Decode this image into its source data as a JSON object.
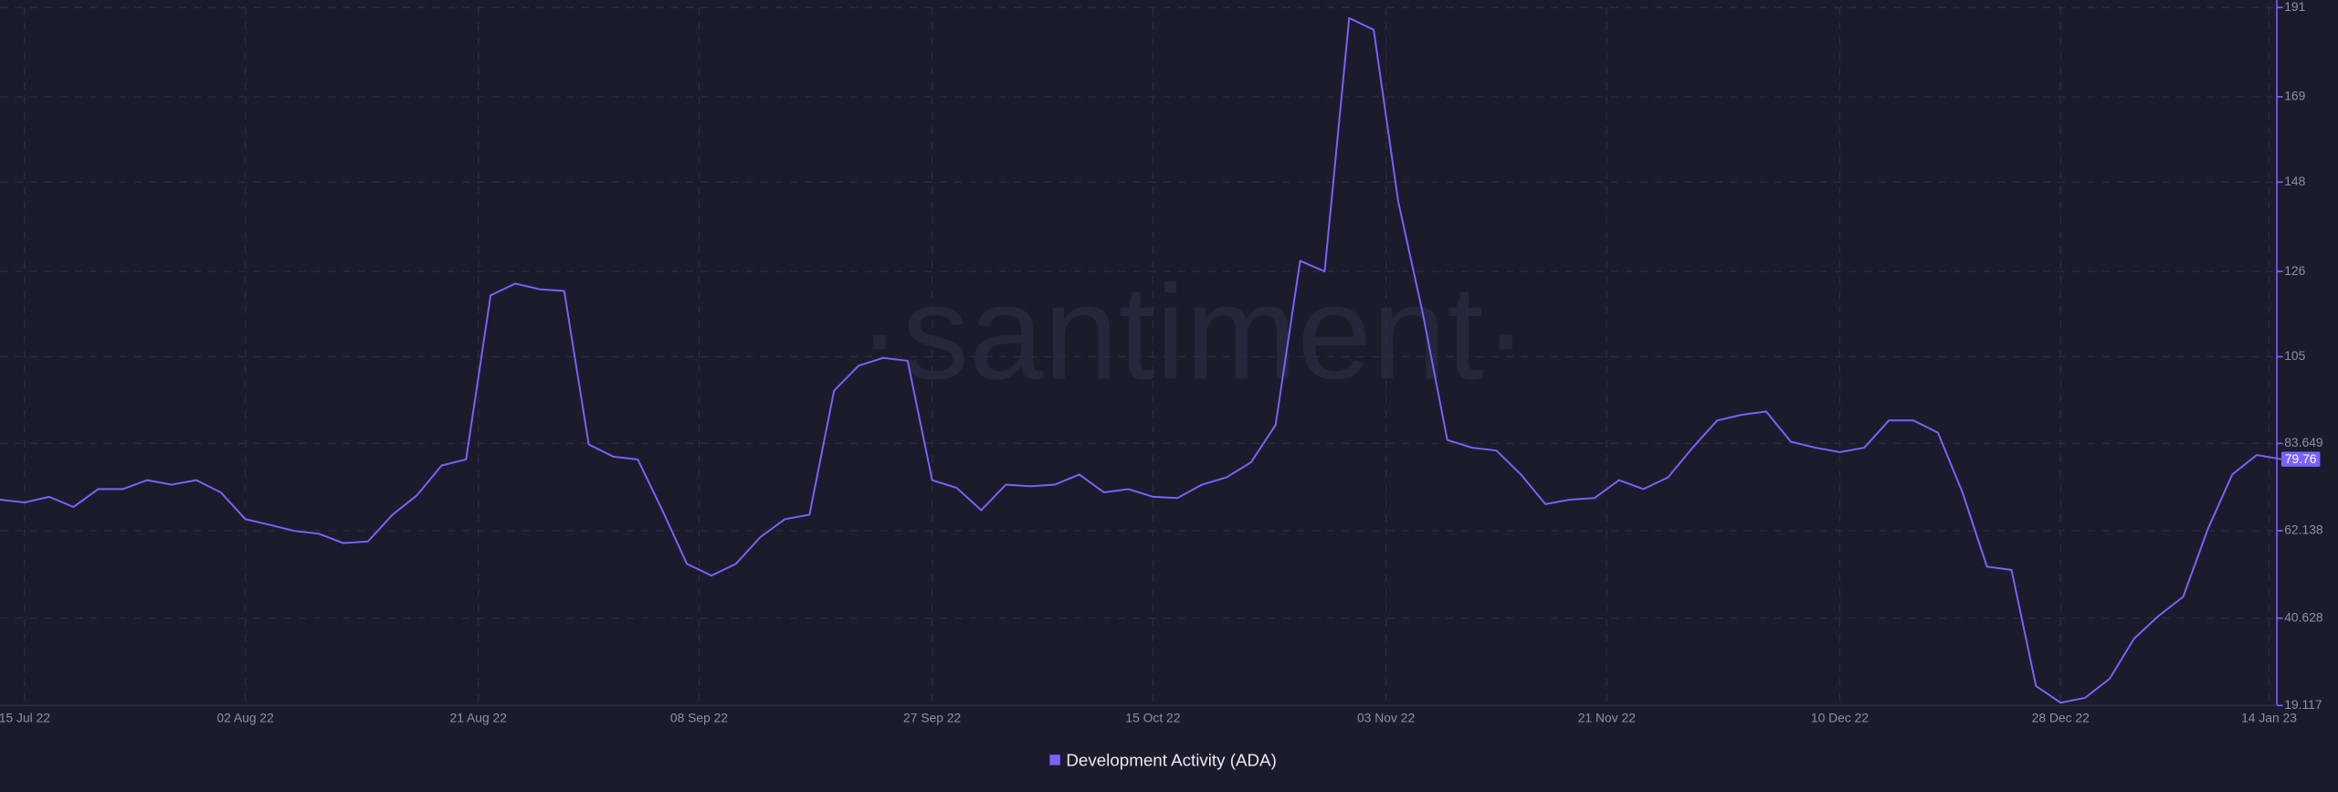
{
  "chart_data": {
    "type": "line",
    "watermark": "·santiment·",
    "x": [
      "2022-07-13",
      "2022-07-15",
      "2022-07-17",
      "2022-07-19",
      "2022-07-21",
      "2022-07-23",
      "2022-07-25",
      "2022-07-27",
      "2022-07-29",
      "2022-07-31",
      "2022-08-02",
      "2022-08-04",
      "2022-08-06",
      "2022-08-08",
      "2022-08-10",
      "2022-08-12",
      "2022-08-14",
      "2022-08-16",
      "2022-08-18",
      "2022-08-20",
      "2022-08-22",
      "2022-08-24",
      "2022-08-26",
      "2022-08-28",
      "2022-08-30",
      "2022-09-01",
      "2022-09-03",
      "2022-09-05",
      "2022-09-07",
      "2022-09-09",
      "2022-09-11",
      "2022-09-13",
      "2022-09-15",
      "2022-09-17",
      "2022-09-19",
      "2022-09-21",
      "2022-09-23",
      "2022-09-25",
      "2022-09-27",
      "2022-09-29",
      "2022-10-01",
      "2022-10-03",
      "2022-10-05",
      "2022-10-07",
      "2022-10-09",
      "2022-10-11",
      "2022-10-13",
      "2022-10-15",
      "2022-10-17",
      "2022-10-19",
      "2022-10-21",
      "2022-10-23",
      "2022-10-25",
      "2022-10-27",
      "2022-10-29",
      "2022-10-31",
      "2022-11-02",
      "2022-11-04",
      "2022-11-06",
      "2022-11-08",
      "2022-11-10",
      "2022-11-12",
      "2022-11-14",
      "2022-11-16",
      "2022-11-18",
      "2022-11-20",
      "2022-11-22",
      "2022-11-24",
      "2022-11-26",
      "2022-11-28",
      "2022-11-30",
      "2022-12-02",
      "2022-12-04",
      "2022-12-06",
      "2022-12-08",
      "2022-12-10",
      "2022-12-12",
      "2022-12-14",
      "2022-12-16",
      "2022-12-18",
      "2022-12-20",
      "2022-12-22",
      "2022-12-24",
      "2022-12-26",
      "2022-12-28",
      "2022-12-30",
      "2023-01-01",
      "2023-01-03",
      "2023-01-05",
      "2023-01-07",
      "2023-01-09",
      "2023-01-11",
      "2023-01-13",
      "2023-01-15"
    ],
    "series": [
      {
        "name": "Development Activity (ADA)",
        "color": "#7b61ff",
        "values": [
          69.8,
          69.1,
          70.5,
          68,
          72.4,
          72.4,
          74.6,
          73.5,
          74.6,
          71.6,
          65,
          63.6,
          62.1,
          61.4,
          59.1,
          59.5,
          66.1,
          70.9,
          78.2,
          79.7,
          120.1,
          123,
          121.6,
          121.2,
          83.4,
          80.4,
          79.7,
          67.2,
          54,
          51.1,
          54,
          60.6,
          65,
          66.1,
          96.6,
          102.8,
          104.7,
          104,
          74.6,
          72.7,
          67.2,
          73.5,
          73.1,
          73.5,
          76,
          71.6,
          72.4,
          70.5,
          70.2,
          73.5,
          75.3,
          79,
          88.2,
          128.6,
          126,
          188.4,
          185.5,
          143.2,
          115.7,
          84.5,
          82.6,
          81.9,
          76,
          68.7,
          69.8,
          70.2,
          74.6,
          72.4,
          75.3,
          82.6,
          89.3,
          90.7,
          91.5,
          84.1,
          82.6,
          81.5,
          82.6,
          89.3,
          89.3,
          86.3,
          71.6,
          53.3,
          52.5,
          23.9,
          19.8,
          21,
          25.7,
          35.6,
          41.2,
          45.9,
          62.5,
          76,
          80.8,
          79.76
        ]
      }
    ],
    "xlim": [
      "2022-07-13",
      "2023-01-15"
    ],
    "xticks": [
      {
        "value": "2022-07-15",
        "label": "15 Jul 22"
      },
      {
        "value": "2022-08-02",
        "label": "02 Aug 22"
      },
      {
        "value": "2022-08-21",
        "label": "21 Aug 22"
      },
      {
        "value": "2022-09-08",
        "label": "08 Sep 22"
      },
      {
        "value": "2022-09-27",
        "label": "27 Sep 22"
      },
      {
        "value": "2022-10-15",
        "label": "15 Oct 22"
      },
      {
        "value": "2022-11-03",
        "label": "03 Nov 22"
      },
      {
        "value": "2022-11-21",
        "label": "21 Nov 22"
      },
      {
        "value": "2022-12-10",
        "label": "10 Dec 22"
      },
      {
        "value": "2022-12-28",
        "label": "28 Dec 22"
      },
      {
        "value": "2023-01-14",
        "label": "14 Jan 23"
      }
    ],
    "ylim": [
      19.117,
      191
    ],
    "yticks": [
      19.117,
      40.628,
      62.138,
      83.649,
      105,
      126,
      148,
      169,
      191
    ],
    "grid": true,
    "legend": "bottom"
  }
}
